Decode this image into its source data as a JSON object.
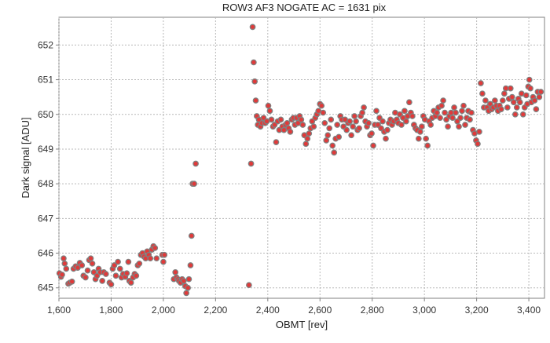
{
  "chart_data": {
    "type": "scatter",
    "title": "ROW3 AF3 NOGATE AC = 1631 pix",
    "xlabel": "OBMT [rev]",
    "ylabel": "Dark signal [ADU]",
    "xlim": [
      1600,
      3460
    ],
    "ylim": [
      644.7,
      652.8
    ],
    "x_ticks": [
      1600,
      1800,
      2000,
      2200,
      2400,
      2600,
      2800,
      3000,
      3200,
      3400
    ],
    "x_tick_labels": [
      "1,600",
      "1,800",
      "2,000",
      "2,200",
      "2,400",
      "2,600",
      "2,800",
      "3,000",
      "3,200",
      "3,400"
    ],
    "y_ticks": [
      645,
      646,
      647,
      648,
      649,
      650,
      651,
      652
    ],
    "y_tick_labels": [
      "645",
      "646",
      "647",
      "648",
      "649",
      "650",
      "651",
      "652"
    ],
    "grid": true,
    "marker_fill": "#e03a3a",
    "marker_edge": "#808080",
    "series": [
      {
        "points": [
          [
            1602,
            645.42
          ],
          [
            1608,
            645.32
          ],
          [
            1612,
            645.38
          ],
          [
            1618,
            645.85
          ],
          [
            1622,
            645.7
          ],
          [
            1628,
            645.55
          ],
          [
            1636,
            645.12
          ],
          [
            1642,
            645.15
          ],
          [
            1650,
            645.18
          ],
          [
            1656,
            645.55
          ],
          [
            1664,
            645.62
          ],
          [
            1672,
            645.58
          ],
          [
            1680,
            645.72
          ],
          [
            1688,
            645.65
          ],
          [
            1694,
            645.35
          ],
          [
            1702,
            645.3
          ],
          [
            1710,
            645.5
          ],
          [
            1716,
            645.8
          ],
          [
            1722,
            645.85
          ],
          [
            1728,
            645.7
          ],
          [
            1734,
            645.45
          ],
          [
            1740,
            645.25
          ],
          [
            1746,
            645.35
          ],
          [
            1752,
            645.55
          ],
          [
            1758,
            645.45
          ],
          [
            1766,
            645.2
          ],
          [
            1772,
            645.45
          ],
          [
            1780,
            645.4
          ],
          [
            1794,
            645.15
          ],
          [
            1800,
            645.1
          ],
          [
            1806,
            645.55
          ],
          [
            1812,
            645.65
          ],
          [
            1818,
            645.35
          ],
          [
            1826,
            645.75
          ],
          [
            1834,
            645.55
          ],
          [
            1840,
            645.3
          ],
          [
            1846,
            645.4
          ],
          [
            1854,
            645.32
          ],
          [
            1860,
            645.42
          ],
          [
            1866,
            645.75
          ],
          [
            1870,
            645.2
          ],
          [
            1876,
            645.15
          ],
          [
            1884,
            645.3
          ],
          [
            1890,
            645.4
          ],
          [
            1896,
            645.35
          ],
          [
            1902,
            645.65
          ],
          [
            1908,
            645.7
          ],
          [
            1914,
            645.95
          ],
          [
            1920,
            646.0
          ],
          [
            1926,
            645.9
          ],
          [
            1932,
            645.85
          ],
          [
            1938,
            646.05
          ],
          [
            1944,
            645.95
          ],
          [
            1950,
            645.85
          ],
          [
            1956,
            646.1
          ],
          [
            1962,
            646.2
          ],
          [
            1968,
            646.15
          ],
          [
            1974,
            645.85
          ],
          [
            1996,
            645.95
          ],
          [
            2000,
            645.75
          ],
          [
            2004,
            645.95
          ],
          [
            2040,
            645.25
          ],
          [
            2046,
            645.45
          ],
          [
            2050,
            645.3
          ],
          [
            2056,
            645.25
          ],
          [
            2060,
            645.2
          ],
          [
            2066,
            645.15
          ],
          [
            2072,
            645.25
          ],
          [
            2078,
            645.2
          ],
          [
            2084,
            645.05
          ],
          [
            2088,
            644.85
          ],
          [
            2094,
            645.0
          ],
          [
            2098,
            645.25
          ],
          [
            2104,
            645.65
          ],
          [
            2108,
            646.5
          ],
          [
            2112,
            648.0
          ],
          [
            2118,
            648.0
          ],
          [
            2124,
            648.58
          ],
          [
            2328,
            645.08
          ],
          [
            2336,
            648.58
          ],
          [
            2342,
            652.52
          ],
          [
            2346,
            651.5
          ],
          [
            2350,
            650.95
          ],
          [
            2354,
            650.4
          ],
          [
            2358,
            649.95
          ],
          [
            2362,
            649.7
          ],
          [
            2366,
            649.85
          ],
          [
            2372,
            649.65
          ],
          [
            2378,
            649.75
          ],
          [
            2384,
            649.9
          ],
          [
            2390,
            649.75
          ],
          [
            2396,
            649.8
          ],
          [
            2402,
            650.25
          ],
          [
            2408,
            650.1
          ],
          [
            2414,
            649.85
          ],
          [
            2420,
            649.65
          ],
          [
            2426,
            649.7
          ],
          [
            2432,
            649.2
          ],
          [
            2438,
            649.8
          ],
          [
            2444,
            649.55
          ],
          [
            2450,
            649.85
          ],
          [
            2456,
            649.65
          ],
          [
            2462,
            649.55
          ],
          [
            2468,
            649.7
          ],
          [
            2474,
            649.75
          ],
          [
            2480,
            649.6
          ],
          [
            2486,
            649.5
          ],
          [
            2492,
            649.85
          ],
          [
            2498,
            649.9
          ],
          [
            2504,
            649.7
          ],
          [
            2510,
            649.9
          ],
          [
            2516,
            649.75
          ],
          [
            2522,
            649.95
          ],
          [
            2528,
            649.85
          ],
          [
            2534,
            649.7
          ],
          [
            2540,
            649.4
          ],
          [
            2546,
            649.15
          ],
          [
            2552,
            649.3
          ],
          [
            2558,
            649.45
          ],
          [
            2564,
            649.6
          ],
          [
            2570,
            649.8
          ],
          [
            2576,
            649.65
          ],
          [
            2582,
            649.9
          ],
          [
            2588,
            650.0
          ],
          [
            2594,
            650.1
          ],
          [
            2600,
            650.3
          ],
          [
            2606,
            650.25
          ],
          [
            2612,
            650.05
          ],
          [
            2618,
            649.75
          ],
          [
            2624,
            649.25
          ],
          [
            2630,
            649.4
          ],
          [
            2636,
            649.6
          ],
          [
            2642,
            649.85
          ],
          [
            2648,
            649.1
          ],
          [
            2654,
            648.9
          ],
          [
            2660,
            649.3
          ],
          [
            2666,
            649.7
          ],
          [
            2672,
            649.35
          ],
          [
            2678,
            649.95
          ],
          [
            2684,
            649.85
          ],
          [
            2690,
            649.65
          ],
          [
            2696,
            649.85
          ],
          [
            2702,
            649.55
          ],
          [
            2708,
            649.75
          ],
          [
            2714,
            649.8
          ],
          [
            2720,
            649.4
          ],
          [
            2726,
            649.65
          ],
          [
            2732,
            649.95
          ],
          [
            2738,
            649.8
          ],
          [
            2744,
            649.55
          ],
          [
            2750,
            649.6
          ],
          [
            2756,
            649.95
          ],
          [
            2762,
            650.05
          ],
          [
            2768,
            650.2
          ],
          [
            2774,
            649.8
          ],
          [
            2780,
            649.65
          ],
          [
            2786,
            649.75
          ],
          [
            2792,
            649.4
          ],
          [
            2798,
            649.45
          ],
          [
            2804,
            649.1
          ],
          [
            2810,
            649.7
          ],
          [
            2816,
            650.1
          ],
          [
            2822,
            649.7
          ],
          [
            2828,
            649.9
          ],
          [
            2834,
            649.6
          ],
          [
            2840,
            649.8
          ],
          [
            2846,
            649.5
          ],
          [
            2852,
            649.3
          ],
          [
            2858,
            649.55
          ],
          [
            2864,
            649.75
          ],
          [
            2870,
            649.85
          ],
          [
            2876,
            649.7
          ],
          [
            2882,
            649.8
          ],
          [
            2888,
            650.05
          ],
          [
            2894,
            649.85
          ],
          [
            2900,
            649.75
          ],
          [
            2906,
            650.0
          ],
          [
            2912,
            649.7
          ],
          [
            2918,
            649.9
          ],
          [
            2924,
            650.1
          ],
          [
            2930,
            649.8
          ],
          [
            2936,
            649.95
          ],
          [
            2942,
            650.35
          ],
          [
            2948,
            650.05
          ],
          [
            2954,
            649.95
          ],
          [
            2960,
            649.7
          ],
          [
            2966,
            649.6
          ],
          [
            2972,
            649.55
          ],
          [
            2978,
            649.3
          ],
          [
            2984,
            649.5
          ],
          [
            2990,
            649.65
          ],
          [
            2996,
            649.95
          ],
          [
            3002,
            649.85
          ],
          [
            3006,
            649.3
          ],
          [
            3012,
            649.1
          ],
          [
            3018,
            649.8
          ],
          [
            3024,
            649.7
          ],
          [
            3030,
            649.9
          ],
          [
            3036,
            650.1
          ],
          [
            3042,
            649.95
          ],
          [
            3048,
            650.05
          ],
          [
            3054,
            650.2
          ],
          [
            3060,
            649.9
          ],
          [
            3066,
            650.25
          ],
          [
            3072,
            650.4
          ],
          [
            3078,
            650.05
          ],
          [
            3084,
            649.85
          ],
          [
            3090,
            649.65
          ],
          [
            3096,
            649.95
          ],
          [
            3102,
            650.05
          ],
          [
            3108,
            649.9
          ],
          [
            3114,
            650.2
          ],
          [
            3120,
            650.05
          ],
          [
            3126,
            649.8
          ],
          [
            3132,
            649.65
          ],
          [
            3138,
            649.9
          ],
          [
            3144,
            650.1
          ],
          [
            3150,
            650.25
          ],
          [
            3156,
            649.7
          ],
          [
            3162,
            649.9
          ],
          [
            3168,
            650.1
          ],
          [
            3174,
            649.85
          ],
          [
            3180,
            650.05
          ],
          [
            3186,
            649.55
          ],
          [
            3192,
            649.45
          ],
          [
            3198,
            649.25
          ],
          [
            3204,
            649.15
          ],
          [
            3210,
            649.5
          ],
          [
            3216,
            650.9
          ],
          [
            3222,
            650.6
          ],
          [
            3228,
            650.2
          ],
          [
            3234,
            650.4
          ],
          [
            3240,
            650.2
          ],
          [
            3246,
            650.1
          ],
          [
            3252,
            650.3
          ],
          [
            3258,
            650.15
          ],
          [
            3264,
            650.2
          ],
          [
            3270,
            650.4
          ],
          [
            3276,
            650.25
          ],
          [
            3282,
            650.1
          ],
          [
            3288,
            650.25
          ],
          [
            3294,
            650.15
          ],
          [
            3300,
            650.4
          ],
          [
            3306,
            650.6
          ],
          [
            3312,
            650.75
          ],
          [
            3318,
            650.2
          ],
          [
            3324,
            650.45
          ],
          [
            3330,
            650.75
          ],
          [
            3336,
            650.5
          ],
          [
            3342,
            650.35
          ],
          [
            3348,
            650.0
          ],
          [
            3354,
            650.2
          ],
          [
            3360,
            650.45
          ],
          [
            3366,
            650.35
          ],
          [
            3372,
            650.6
          ],
          [
            3378,
            650.0
          ],
          [
            3384,
            650.2
          ],
          [
            3390,
            650.55
          ],
          [
            3394,
            650.3
          ],
          [
            3398,
            650.8
          ],
          [
            3402,
            651.0
          ],
          [
            3406,
            650.75
          ],
          [
            3410,
            650.35
          ],
          [
            3416,
            650.5
          ],
          [
            3422,
            650.4
          ],
          [
            3428,
            650.15
          ],
          [
            3434,
            650.65
          ],
          [
            3440,
            650.5
          ],
          [
            3446,
            650.65
          ]
        ]
      }
    ]
  }
}
